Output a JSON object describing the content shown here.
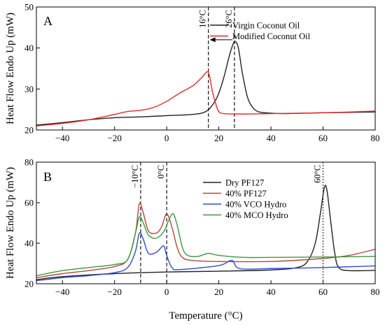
{
  "chart_data": [
    {
      "panel_label": "A",
      "type": "line",
      "ylabel": "Heat Flow Endo Up (mW)",
      "xlim": [
        -50,
        80
      ],
      "ylim": [
        20,
        50
      ],
      "xticks": [
        -40,
        -20,
        0,
        20,
        40,
        60,
        80
      ],
      "yticks": [
        20,
        30,
        40,
        50
      ],
      "legend_position": "top-right",
      "vlines": [
        {
          "x": 16,
          "label": "16°C",
          "style": "dashed"
        },
        {
          "x": 26,
          "label": "26°C",
          "style": "dashed"
        }
      ],
      "arrow": {
        "from_x": 26,
        "to_x": 16,
        "y": 42
      },
      "series": [
        {
          "name": "Virgin Coconut Oil",
          "color": "#222222",
          "points": [
            [
              -50,
              21.2
            ],
            [
              -40,
              21.8
            ],
            [
              -30,
              22.5
            ],
            [
              -20,
              23.0
            ],
            [
              -10,
              23.2
            ],
            [
              0,
              23.5
            ],
            [
              10,
              23.8
            ],
            [
              15,
              24.5
            ],
            [
              18,
              26.5
            ],
            [
              20,
              29.0
            ],
            [
              22,
              33.0
            ],
            [
              24,
              38.0
            ],
            [
              25.5,
              41.0
            ],
            [
              26.3,
              41.6
            ],
            [
              27.5,
              40.0
            ],
            [
              29,
              34.0
            ],
            [
              31,
              28.0
            ],
            [
              33,
              25.5
            ],
            [
              35,
              24.5
            ],
            [
              38,
              24.2
            ],
            [
              45,
              24.0
            ],
            [
              60,
              24.2
            ],
            [
              70,
              24.3
            ],
            [
              80,
              24.4
            ]
          ]
        },
        {
          "name": "Modified Coconut Oil",
          "color": "#e8272a",
          "points": [
            [
              -50,
              21.0
            ],
            [
              -40,
              21.6
            ],
            [
              -30,
              22.5
            ],
            [
              -20,
              23.8
            ],
            [
              -15,
              24.5
            ],
            [
              -10,
              24.8
            ],
            [
              -5,
              25.5
            ],
            [
              0,
              27.0
            ],
            [
              5,
              29.0
            ],
            [
              10,
              30.8
            ],
            [
              13,
              32.5
            ],
            [
              15.5,
              34.2
            ],
            [
              16.5,
              33.0
            ],
            [
              17.5,
              29.5
            ],
            [
              19,
              26.0
            ],
            [
              20,
              24.5
            ],
            [
              22,
              24.0
            ],
            [
              30,
              23.9
            ],
            [
              40,
              24.0
            ],
            [
              60,
              24.2
            ],
            [
              80,
              24.6
            ]
          ]
        }
      ]
    },
    {
      "panel_label": "B",
      "type": "line",
      "xlabel": "Temperature (°C)",
      "ylabel": "Heat Flow Endo Up (mW)",
      "xlim": [
        -50,
        80
      ],
      "ylim": [
        20,
        80
      ],
      "xticks": [
        -40,
        -20,
        0,
        20,
        40,
        60,
        80
      ],
      "yticks": [
        20,
        40,
        60,
        80
      ],
      "legend_position": "top-center",
      "vlines": [
        {
          "x": -10,
          "label": "−10°C",
          "style": "dashed"
        },
        {
          "x": 0,
          "label": "0°C",
          "style": "dashed"
        },
        {
          "x": 60,
          "label": "60°C",
          "style": "dotted"
        }
      ],
      "series": [
        {
          "name": "Dry PF127",
          "color": "#222222",
          "points": [
            [
              -50,
              22.0
            ],
            [
              -40,
              23.5
            ],
            [
              -20,
              25.0
            ],
            [
              0,
              25.8
            ],
            [
              20,
              26.2
            ],
            [
              40,
              26.8
            ],
            [
              50,
              28.0
            ],
            [
              54,
              31.0
            ],
            [
              57,
              40.0
            ],
            [
              59,
              55.0
            ],
            [
              60.5,
              67.5
            ],
            [
              61.5,
              66.0
            ],
            [
              63,
              50.0
            ],
            [
              64.5,
              35.0
            ],
            [
              66,
              28.0
            ],
            [
              70,
              26.5
            ],
            [
              80,
              26.6
            ]
          ]
        },
        {
          "name": "40% PF127",
          "color": "#b5473b",
          "points": [
            [
              -50,
              23.0
            ],
            [
              -40,
              25.0
            ],
            [
              -30,
              26.5
            ],
            [
              -20,
              28.5
            ],
            [
              -15,
              32.0
            ],
            [
              -12,
              45.0
            ],
            [
              -10.5,
              59.5
            ],
            [
              -9,
              55.0
            ],
            [
              -7,
              46.0
            ],
            [
              -4,
              45.0
            ],
            [
              -2,
              48.0
            ],
            [
              0,
              54.5
            ],
            [
              2,
              48.0
            ],
            [
              4,
              38.0
            ],
            [
              6,
              33.0
            ],
            [
              10,
              31.5
            ],
            [
              20,
              31.0
            ],
            [
              40,
              31.0
            ],
            [
              60,
              32.5
            ],
            [
              70,
              34.0
            ],
            [
              80,
              37.0
            ]
          ]
        },
        {
          "name": "40% VCO Hydro",
          "color": "#2f49d6",
          "points": [
            [
              -50,
              21.5
            ],
            [
              -40,
              23.0
            ],
            [
              -30,
              24.0
            ],
            [
              -20,
              25.5
            ],
            [
              -15,
              28.0
            ],
            [
              -12,
              36.0
            ],
            [
              -10.5,
              45.0
            ],
            [
              -9,
              42.0
            ],
            [
              -7,
              35.0
            ],
            [
              -4,
              35.5
            ],
            [
              -2,
              38.0
            ],
            [
              -1,
              38.5
            ],
            [
              0,
              34.0
            ],
            [
              2,
              28.0
            ],
            [
              5,
              27.0
            ],
            [
              20,
              29.0
            ],
            [
              25,
              31.5
            ],
            [
              28,
              27.5
            ],
            [
              40,
              27.5
            ],
            [
              60,
              28.0
            ],
            [
              80,
              28.8
            ]
          ]
        },
        {
          "name": "40% MCO Hydro",
          "color": "#3a9a3e",
          "points": [
            [
              -50,
              24.0
            ],
            [
              -40,
              26.5
            ],
            [
              -30,
              28.0
            ],
            [
              -20,
              29.5
            ],
            [
              -15,
              32.0
            ],
            [
              -12,
              45.0
            ],
            [
              -10.5,
              53.0
            ],
            [
              -9,
              50.0
            ],
            [
              -7,
              44.0
            ],
            [
              -4,
              42.5
            ],
            [
              -1,
              46.0
            ],
            [
              1,
              52.0
            ],
            [
              2.5,
              54.5
            ],
            [
              4,
              49.0
            ],
            [
              6,
              38.0
            ],
            [
              8,
              34.0
            ],
            [
              12,
              33.5
            ],
            [
              16,
              35.0
            ],
            [
              20,
              34.0
            ],
            [
              30,
              33.0
            ],
            [
              40,
              33.0
            ],
            [
              60,
              33.2
            ],
            [
              80,
              33.5
            ]
          ]
        }
      ]
    }
  ]
}
